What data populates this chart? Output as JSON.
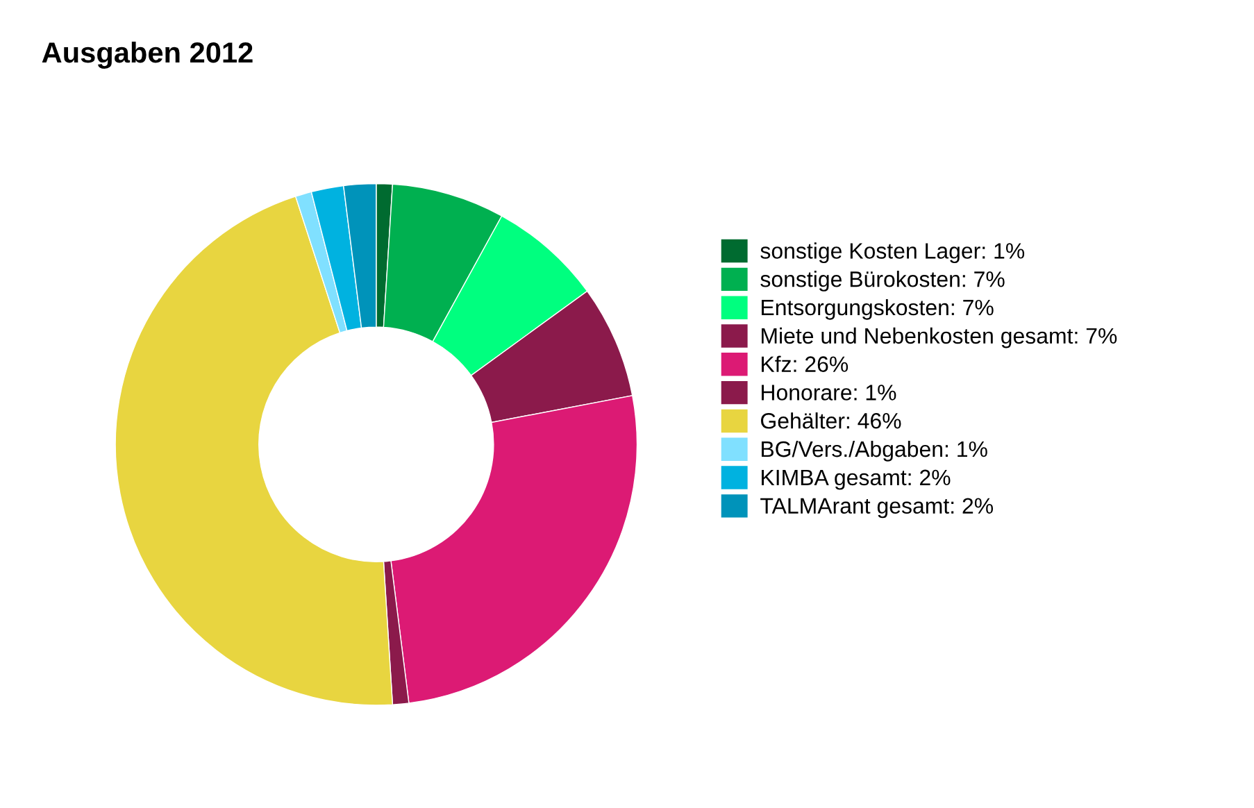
{
  "chart_data": {
    "type": "donut",
    "title": "Ausgaben 2012",
    "categories": [
      "sonstige Kosten Lager",
      "sonstige Bürokosten",
      "Entsorgungskosten",
      "Miete und Nebenkosten gesamt",
      "Kfz",
      "Honorare",
      "Gehälter",
      "BG/Vers./Abgaben",
      "KIMBA gesamt",
      "TALMArant gesamt"
    ],
    "values": [
      1,
      7,
      7,
      7,
      26,
      1,
      46,
      1,
      2,
      2
    ],
    "value_labels": [
      "1%",
      "7%",
      "7%",
      "7%",
      "26%",
      "1%",
      "46%",
      "1%",
      "2%",
      "2%"
    ],
    "colors": [
      "#006b30",
      "#00b050",
      "#00ff7f",
      "#8b1a4b",
      "#dc1a74",
      "#8b1a4b",
      "#e8d540",
      "#80e0ff",
      "#00b2e0",
      "#0093ba"
    ],
    "legend": "right"
  }
}
